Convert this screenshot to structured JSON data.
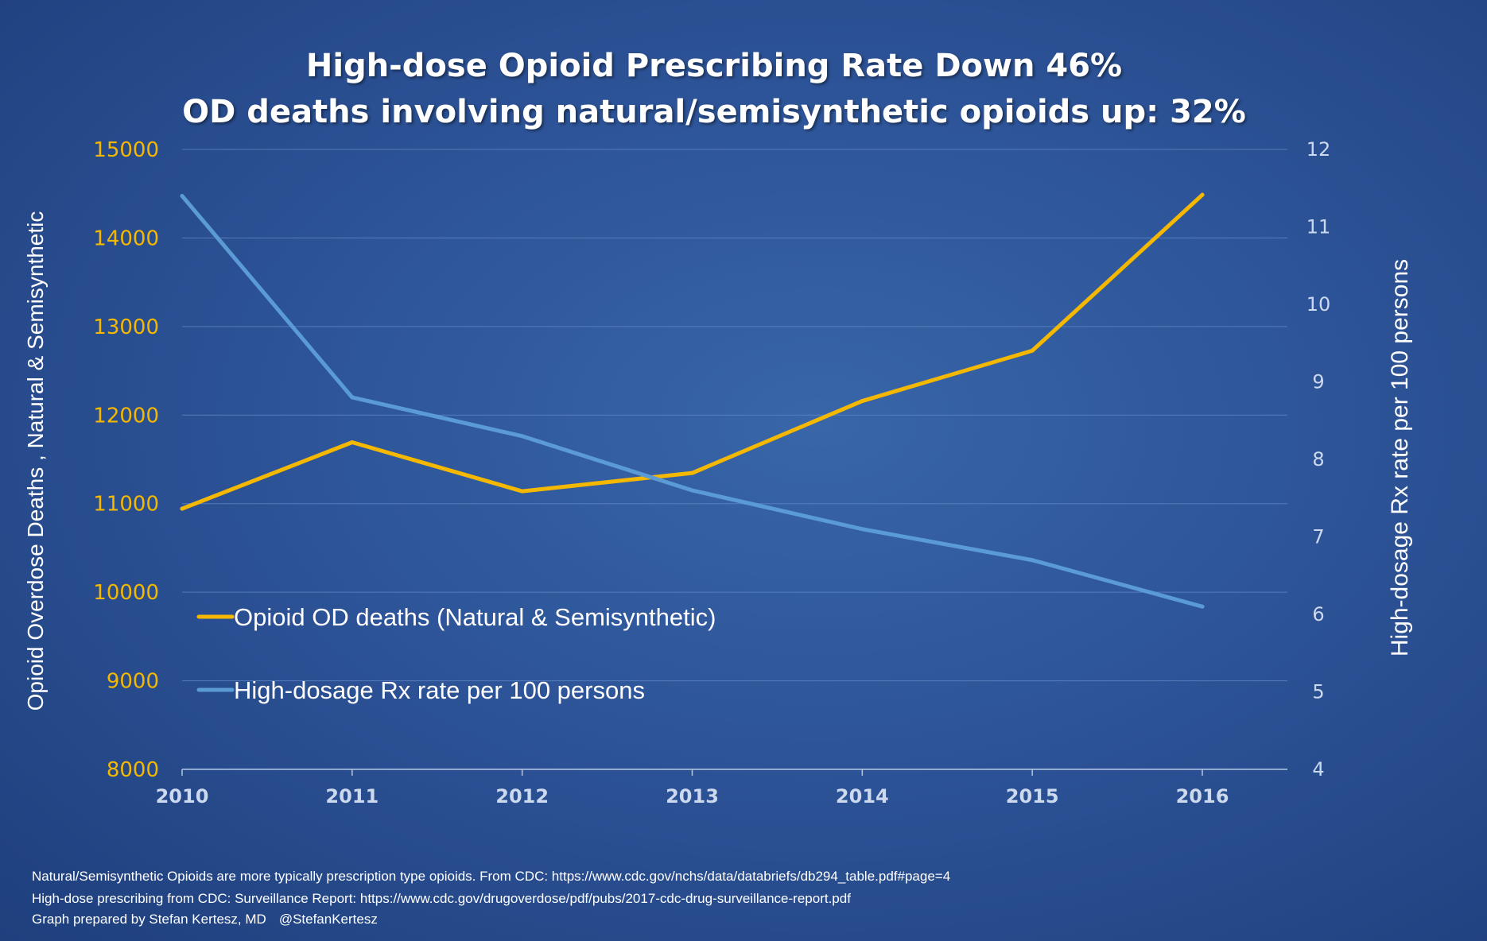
{
  "title_lines": [
    "High-dose Opioid Prescribing Rate Down 46%",
    "OD deaths involving natural/semisynthetic opioids up: 32%"
  ],
  "chart_data": {
    "type": "line",
    "title": "High-dose Opioid Prescribing Rate Down 46% OD deaths involving natural/semisynthetic opioids up: 32%",
    "x": [
      2010,
      2011,
      2012,
      2013,
      2014,
      2015,
      2016
    ],
    "x_tick_labels": [
      "2010",
      "2011",
      "2012",
      "2013",
      "2014",
      "2015",
      "2016"
    ],
    "ylabel_left": "Opioid Overdose Deaths , Natural & Semisynthetic",
    "ylabel_right": "High-dosage Rx rate per 100 persons",
    "ylim_left": [
      8000,
      15000
    ],
    "ylim_right": [
      4,
      12
    ],
    "y_ticks_left": [
      "8000",
      "9000",
      "10000",
      "11000",
      "12000",
      "13000",
      "14000",
      "15000"
    ],
    "y_ticks_right": [
      "4",
      "5",
      "6",
      "7",
      "8",
      "9",
      "10",
      "11",
      "12"
    ],
    "grid": true,
    "legend_placement": "lower-left",
    "series": [
      {
        "name": "Opioid OD deaths (Natural & Semisynthetic)",
        "axis": "left",
        "color": "#f5b800",
        "values": [
          10943,
          11693,
          11140,
          11346,
          12159,
          12727,
          14487
        ]
      },
      {
        "name": "High-dosage Rx rate per 100 persons",
        "axis": "right",
        "color": "#5b9bd5",
        "values": [
          11.4,
          8.8,
          8.3,
          7.6,
          7.1,
          6.7,
          6.1
        ]
      }
    ],
    "colors": {
      "left_axis_text": "#f5b800",
      "right_axis_text": "#cdd9ee",
      "gridline": "#5f86c4",
      "axis_line": "#b4c6e4"
    }
  },
  "footnotes": [
    "Natural/Semisynthetic Opioids are more typically prescription type opioids. From CDC: https://www.cdc.gov/nchs/data/databriefs/db294_table.pdf#page=4",
    "High-dose prescribing from CDC: Surveillance Report: https://www.cdc.gov/drugoverdose/pdf/pubs/2017-cdc-drug-surveillance-report.pdf"
  ],
  "credit": {
    "author": "Graph prepared by Stefan Kertesz, MD",
    "handle": "@StefanKertesz"
  }
}
